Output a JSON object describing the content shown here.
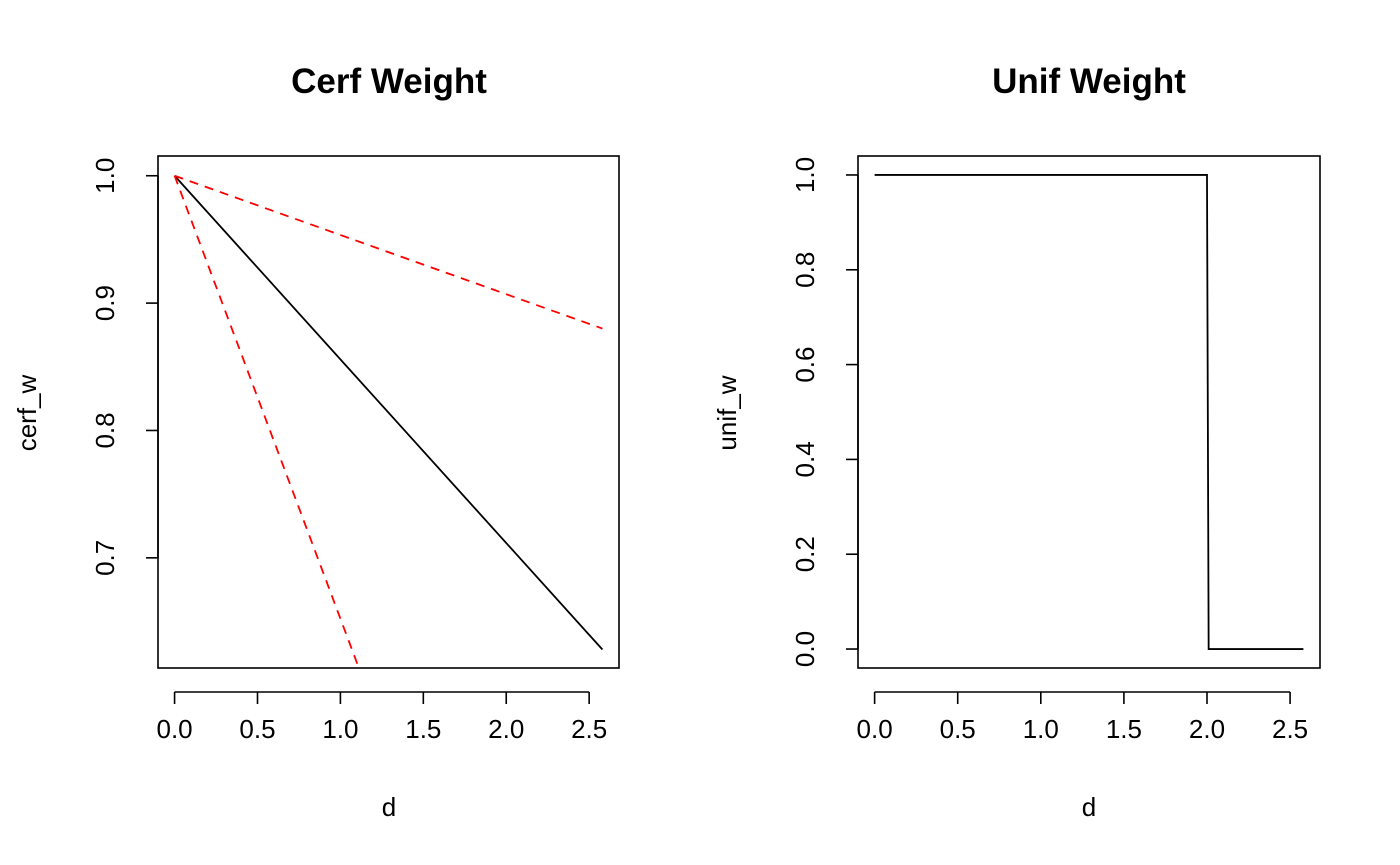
{
  "chart_data": [
    {
      "type": "line",
      "title": "Cerf Weight",
      "xlabel": "d",
      "ylabel": "cerf_w",
      "xlim": [
        -0.1,
        2.68
      ],
      "ylim": [
        0.6135,
        1.0155
      ],
      "x_ticks": [
        {
          "value": 0.0,
          "label": "0.0"
        },
        {
          "value": 0.5,
          "label": "0.5"
        },
        {
          "value": 1.0,
          "label": "1.0"
        },
        {
          "value": 1.5,
          "label": "1.5"
        },
        {
          "value": 2.0,
          "label": "2.0"
        },
        {
          "value": 2.5,
          "label": "2.5"
        }
      ],
      "y_ticks": [
        {
          "value": 0.7,
          "label": "0.7"
        },
        {
          "value": 0.8,
          "label": "0.8"
        },
        {
          "value": 0.9,
          "label": "0.9"
        },
        {
          "value": 1.0,
          "label": "1.0"
        }
      ],
      "grid": false,
      "series": [
        {
          "color": "#000000",
          "dash": "solid",
          "x": [
            0,
            2.58
          ],
          "y": [
            1.0,
            0.628
          ]
        },
        {
          "color": "#ff0000",
          "dash": "dashed",
          "x": [
            0,
            2.58
          ],
          "y": [
            1.0,
            0.88
          ]
        },
        {
          "color": "#ff0000",
          "dash": "dashed",
          "x": [
            0,
            1.11
          ],
          "y": [
            1.0,
            0.614
          ]
        }
      ]
    },
    {
      "type": "line",
      "title": "Unif Weight",
      "xlabel": "d",
      "ylabel": "unif_w",
      "xlim": [
        -0.1,
        2.68
      ],
      "ylim": [
        -0.04,
        1.04
      ],
      "x_ticks": [
        {
          "value": 0.0,
          "label": "0.0"
        },
        {
          "value": 0.5,
          "label": "0.5"
        },
        {
          "value": 1.0,
          "label": "1.0"
        },
        {
          "value": 1.5,
          "label": "1.5"
        },
        {
          "value": 2.0,
          "label": "2.0"
        },
        {
          "value": 2.5,
          "label": "2.5"
        }
      ],
      "y_ticks": [
        {
          "value": 0.0,
          "label": "0.0"
        },
        {
          "value": 0.2,
          "label": "0.2"
        },
        {
          "value": 0.4,
          "label": "0.4"
        },
        {
          "value": 0.6,
          "label": "0.6"
        },
        {
          "value": 0.8,
          "label": "0.8"
        },
        {
          "value": 1.0,
          "label": "1.0"
        }
      ],
      "grid": false,
      "series": [
        {
          "color": "#000000",
          "dash": "solid",
          "x": [
            0,
            2.0,
            2.01,
            2.58
          ],
          "y": [
            1.0,
            1.0,
            0.0,
            0.0
          ]
        }
      ]
    }
  ]
}
